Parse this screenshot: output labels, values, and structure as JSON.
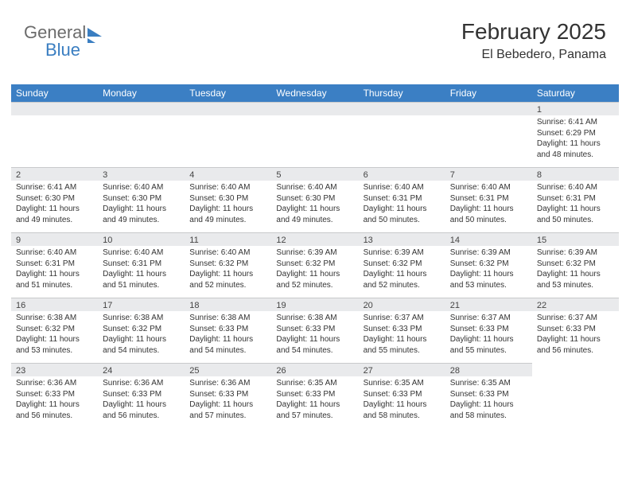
{
  "logo": {
    "word1": "General",
    "word2": "Blue"
  },
  "header": {
    "month_title": "February 2025",
    "location": "El Bebedero, Panama"
  },
  "colors": {
    "header_bg": "#3b7fc4",
    "header_text": "#ffffff",
    "daynum_bg": "#e9eaec",
    "daynum_border": "#c8c9cb",
    "text": "#333333",
    "logo_gray": "#6b6b6b",
    "logo_blue": "#3a7ec1"
  },
  "day_names": [
    "Sunday",
    "Monday",
    "Tuesday",
    "Wednesday",
    "Thursday",
    "Friday",
    "Saturday"
  ],
  "weeks": [
    [
      {
        "empty": true
      },
      {
        "empty": true
      },
      {
        "empty": true
      },
      {
        "empty": true
      },
      {
        "empty": true
      },
      {
        "empty": true
      },
      {
        "num": "1",
        "sunrise": "Sunrise: 6:41 AM",
        "sunset": "Sunset: 6:29 PM",
        "daylight1": "Daylight: 11 hours",
        "daylight2": "and 48 minutes."
      }
    ],
    [
      {
        "num": "2",
        "sunrise": "Sunrise: 6:41 AM",
        "sunset": "Sunset: 6:30 PM",
        "daylight1": "Daylight: 11 hours",
        "daylight2": "and 49 minutes."
      },
      {
        "num": "3",
        "sunrise": "Sunrise: 6:40 AM",
        "sunset": "Sunset: 6:30 PM",
        "daylight1": "Daylight: 11 hours",
        "daylight2": "and 49 minutes."
      },
      {
        "num": "4",
        "sunrise": "Sunrise: 6:40 AM",
        "sunset": "Sunset: 6:30 PM",
        "daylight1": "Daylight: 11 hours",
        "daylight2": "and 49 minutes."
      },
      {
        "num": "5",
        "sunrise": "Sunrise: 6:40 AM",
        "sunset": "Sunset: 6:30 PM",
        "daylight1": "Daylight: 11 hours",
        "daylight2": "and 49 minutes."
      },
      {
        "num": "6",
        "sunrise": "Sunrise: 6:40 AM",
        "sunset": "Sunset: 6:31 PM",
        "daylight1": "Daylight: 11 hours",
        "daylight2": "and 50 minutes."
      },
      {
        "num": "7",
        "sunrise": "Sunrise: 6:40 AM",
        "sunset": "Sunset: 6:31 PM",
        "daylight1": "Daylight: 11 hours",
        "daylight2": "and 50 minutes."
      },
      {
        "num": "8",
        "sunrise": "Sunrise: 6:40 AM",
        "sunset": "Sunset: 6:31 PM",
        "daylight1": "Daylight: 11 hours",
        "daylight2": "and 50 minutes."
      }
    ],
    [
      {
        "num": "9",
        "sunrise": "Sunrise: 6:40 AM",
        "sunset": "Sunset: 6:31 PM",
        "daylight1": "Daylight: 11 hours",
        "daylight2": "and 51 minutes."
      },
      {
        "num": "10",
        "sunrise": "Sunrise: 6:40 AM",
        "sunset": "Sunset: 6:31 PM",
        "daylight1": "Daylight: 11 hours",
        "daylight2": "and 51 minutes."
      },
      {
        "num": "11",
        "sunrise": "Sunrise: 6:40 AM",
        "sunset": "Sunset: 6:32 PM",
        "daylight1": "Daylight: 11 hours",
        "daylight2": "and 52 minutes."
      },
      {
        "num": "12",
        "sunrise": "Sunrise: 6:39 AM",
        "sunset": "Sunset: 6:32 PM",
        "daylight1": "Daylight: 11 hours",
        "daylight2": "and 52 minutes."
      },
      {
        "num": "13",
        "sunrise": "Sunrise: 6:39 AM",
        "sunset": "Sunset: 6:32 PM",
        "daylight1": "Daylight: 11 hours",
        "daylight2": "and 52 minutes."
      },
      {
        "num": "14",
        "sunrise": "Sunrise: 6:39 AM",
        "sunset": "Sunset: 6:32 PM",
        "daylight1": "Daylight: 11 hours",
        "daylight2": "and 53 minutes."
      },
      {
        "num": "15",
        "sunrise": "Sunrise: 6:39 AM",
        "sunset": "Sunset: 6:32 PM",
        "daylight1": "Daylight: 11 hours",
        "daylight2": "and 53 minutes."
      }
    ],
    [
      {
        "num": "16",
        "sunrise": "Sunrise: 6:38 AM",
        "sunset": "Sunset: 6:32 PM",
        "daylight1": "Daylight: 11 hours",
        "daylight2": "and 53 minutes."
      },
      {
        "num": "17",
        "sunrise": "Sunrise: 6:38 AM",
        "sunset": "Sunset: 6:32 PM",
        "daylight1": "Daylight: 11 hours",
        "daylight2": "and 54 minutes."
      },
      {
        "num": "18",
        "sunrise": "Sunrise: 6:38 AM",
        "sunset": "Sunset: 6:33 PM",
        "daylight1": "Daylight: 11 hours",
        "daylight2": "and 54 minutes."
      },
      {
        "num": "19",
        "sunrise": "Sunrise: 6:38 AM",
        "sunset": "Sunset: 6:33 PM",
        "daylight1": "Daylight: 11 hours",
        "daylight2": "and 54 minutes."
      },
      {
        "num": "20",
        "sunrise": "Sunrise: 6:37 AM",
        "sunset": "Sunset: 6:33 PM",
        "daylight1": "Daylight: 11 hours",
        "daylight2": "and 55 minutes."
      },
      {
        "num": "21",
        "sunrise": "Sunrise: 6:37 AM",
        "sunset": "Sunset: 6:33 PM",
        "daylight1": "Daylight: 11 hours",
        "daylight2": "and 55 minutes."
      },
      {
        "num": "22",
        "sunrise": "Sunrise: 6:37 AM",
        "sunset": "Sunset: 6:33 PM",
        "daylight1": "Daylight: 11 hours",
        "daylight2": "and 56 minutes."
      }
    ],
    [
      {
        "num": "23",
        "sunrise": "Sunrise: 6:36 AM",
        "sunset": "Sunset: 6:33 PM",
        "daylight1": "Daylight: 11 hours",
        "daylight2": "and 56 minutes."
      },
      {
        "num": "24",
        "sunrise": "Sunrise: 6:36 AM",
        "sunset": "Sunset: 6:33 PM",
        "daylight1": "Daylight: 11 hours",
        "daylight2": "and 56 minutes."
      },
      {
        "num": "25",
        "sunrise": "Sunrise: 6:36 AM",
        "sunset": "Sunset: 6:33 PM",
        "daylight1": "Daylight: 11 hours",
        "daylight2": "and 57 minutes."
      },
      {
        "num": "26",
        "sunrise": "Sunrise: 6:35 AM",
        "sunset": "Sunset: 6:33 PM",
        "daylight1": "Daylight: 11 hours",
        "daylight2": "and 57 minutes."
      },
      {
        "num": "27",
        "sunrise": "Sunrise: 6:35 AM",
        "sunset": "Sunset: 6:33 PM",
        "daylight1": "Daylight: 11 hours",
        "daylight2": "and 58 minutes."
      },
      {
        "num": "28",
        "sunrise": "Sunrise: 6:35 AM",
        "sunset": "Sunset: 6:33 PM",
        "daylight1": "Daylight: 11 hours",
        "daylight2": "and 58 minutes."
      },
      {
        "empty": true,
        "noRow": true
      }
    ]
  ]
}
